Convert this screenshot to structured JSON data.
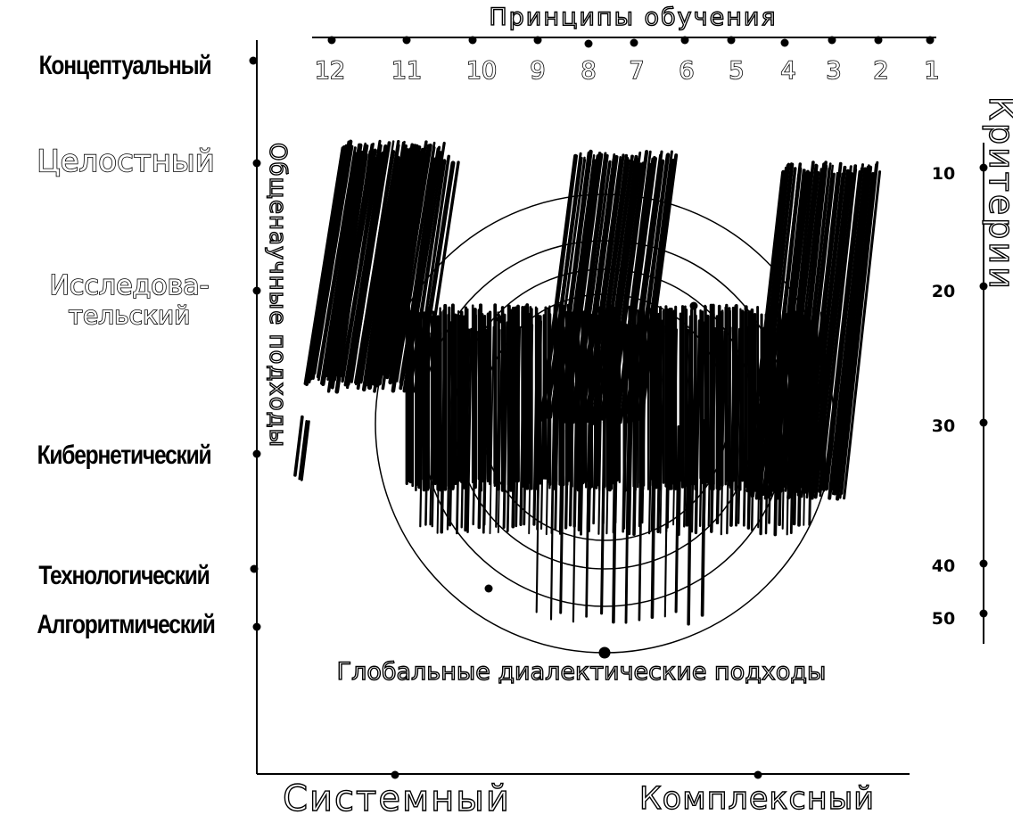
{
  "title_top": "Принципы обучения",
  "title_bottom": "Глобальные диалектические подходы",
  "left_axis_title": "Общенаучные подходы",
  "right_axis_title": "Критерии",
  "left_labels": [
    "Концептуальный",
    "Целостный",
    "Исследова-",
    "тельский",
    "Кибернетический",
    "Технологический",
    "Алгоритмический"
  ],
  "top_numbers": [
    "12",
    "11",
    "10",
    "9",
    "8",
    "7",
    "6",
    "5",
    "4",
    "3",
    "2",
    "1"
  ],
  "right_numbers": [
    "10",
    "20",
    "30",
    "40",
    "50"
  ],
  "bottom_labels": [
    "Системный",
    "Комплексный"
  ]
}
